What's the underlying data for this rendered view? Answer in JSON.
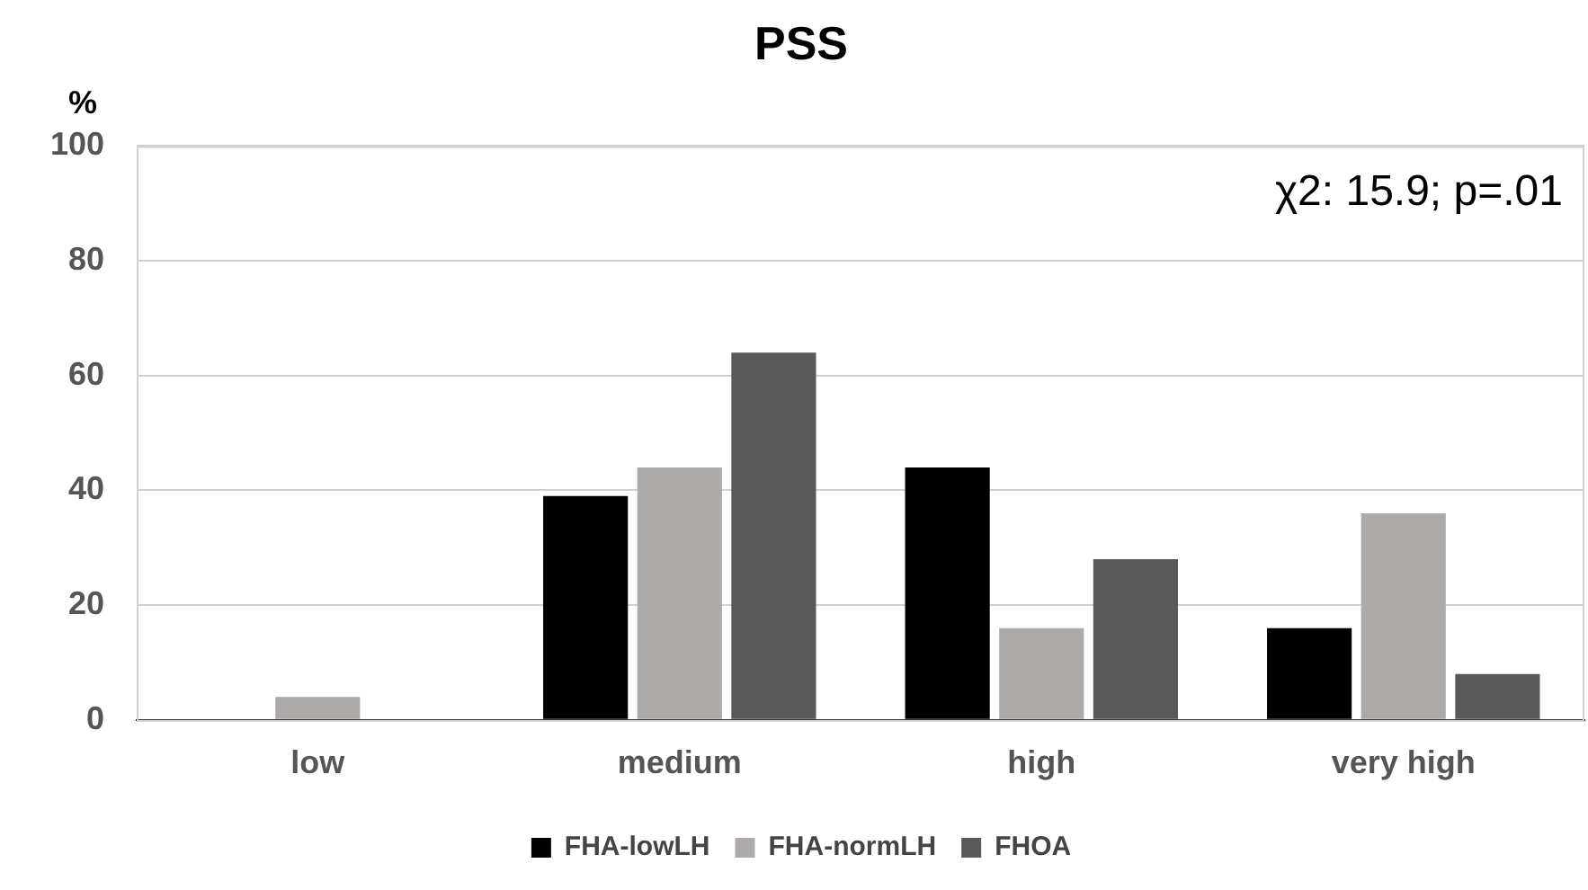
{
  "chart_data": {
    "type": "bar",
    "title": "PSS",
    "ylabel": "%",
    "categories": [
      "low",
      "medium",
      "high",
      "very high"
    ],
    "series": [
      {
        "name": "FHA-lowLH",
        "color": "#000000",
        "values": [
          0,
          39,
          44,
          16
        ]
      },
      {
        "name": "FHA-normLH",
        "color": "#aeaaaa",
        "values": [
          4,
          44,
          16,
          36
        ]
      },
      {
        "name": "FHOA",
        "color": "#595959",
        "values": [
          0,
          64,
          28,
          8
        ]
      }
    ],
    "ylim": [
      0,
      100
    ],
    "yticks": [
      0,
      20,
      40,
      60,
      80,
      100
    ],
    "grid": "y",
    "legend": "bottom",
    "annotations": [
      "χ2: 15.9; p=.01"
    ]
  }
}
